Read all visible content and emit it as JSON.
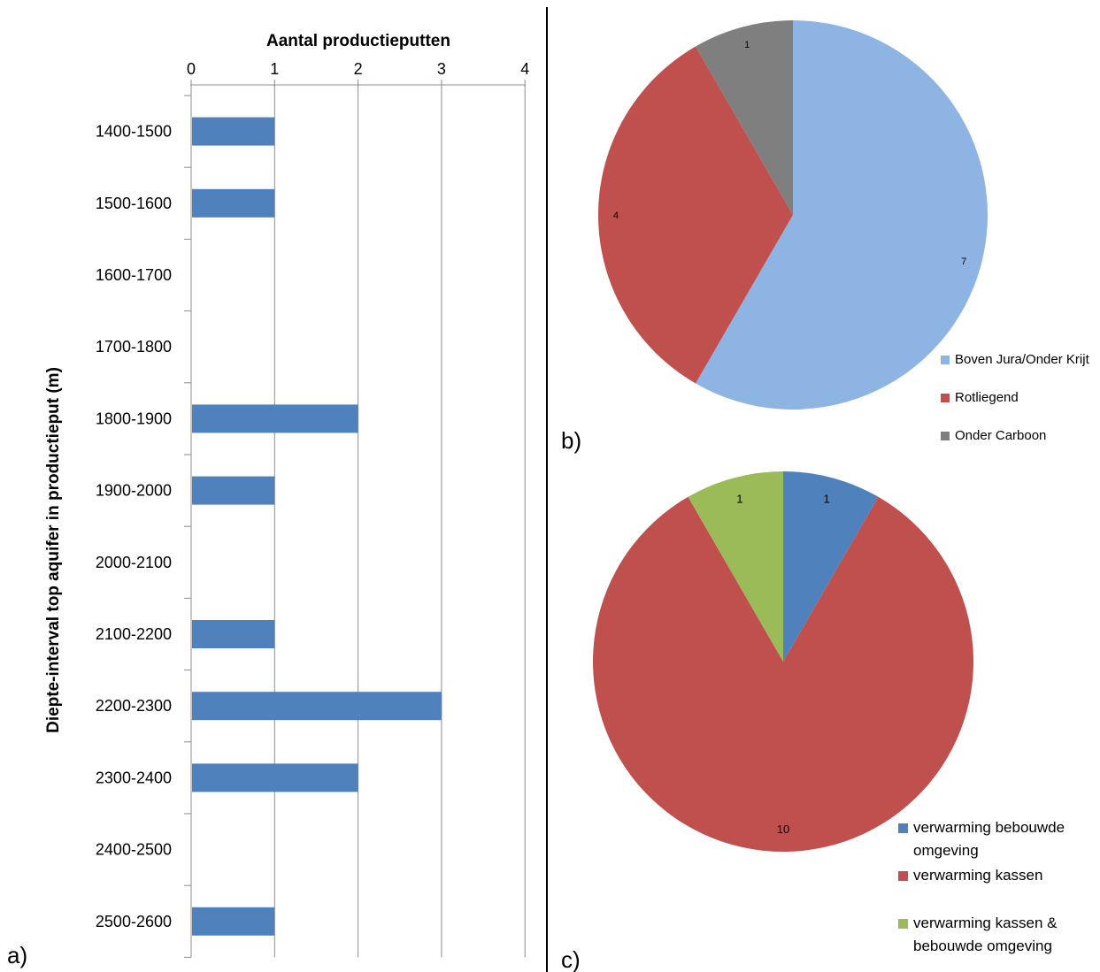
{
  "panels": {
    "a": "a)",
    "b": "b)",
    "c": "c)"
  },
  "chart_data": [
    {
      "type": "bar",
      "orientation": "horizontal",
      "title": "",
      "xlabel": "Aantal productieputten",
      "ylabel": "Diepte-interval top aquifer in productieput (m)",
      "categories": [
        "1400-1500",
        "1500-1600",
        "1600-1700",
        "1700-1800",
        "1800-1900",
        "1900-2000",
        "2000-2100",
        "2100-2200",
        "2200-2300",
        "2300-2400",
        "2400-2500",
        "2500-2600"
      ],
      "values": [
        1,
        1,
        0,
        0,
        2,
        1,
        0,
        1,
        3,
        2,
        0,
        1
      ],
      "xlim": [
        0,
        4
      ],
      "xticks": [
        0,
        1,
        2,
        3,
        4
      ],
      "x_axis_position": "top",
      "grid": "vertical",
      "color": "#4f81bd"
    },
    {
      "type": "pie",
      "title": "",
      "slices": [
        {
          "label": "Boven Jura/Onder Krijt",
          "value": 7,
          "color": "#8eb4e3"
        },
        {
          "label": "Rotliegend",
          "value": 4,
          "color": "#c0504d"
        },
        {
          "label": "Onder Carboon",
          "value": 1,
          "color": "#7f7f7f"
        }
      ],
      "legend_position": "bottom-right"
    },
    {
      "type": "pie",
      "title": "",
      "slices": [
        {
          "label": "verwarming bebouwde omgeving",
          "lines": [
            "verwarming bebouwde",
            "omgeving"
          ],
          "value": 1,
          "color": "#4f81bd"
        },
        {
          "label": "verwarming kassen",
          "lines": [
            "verwarming kassen"
          ],
          "value": 10,
          "color": "#c0504d"
        },
        {
          "label": "verwarming kassen & bebouwde omgeving",
          "lines": [
            "verwarming kassen &",
            "bebouwde omgeving"
          ],
          "value": 1,
          "color": "#9bbb59"
        }
      ],
      "legend_position": "bottom-right"
    }
  ]
}
